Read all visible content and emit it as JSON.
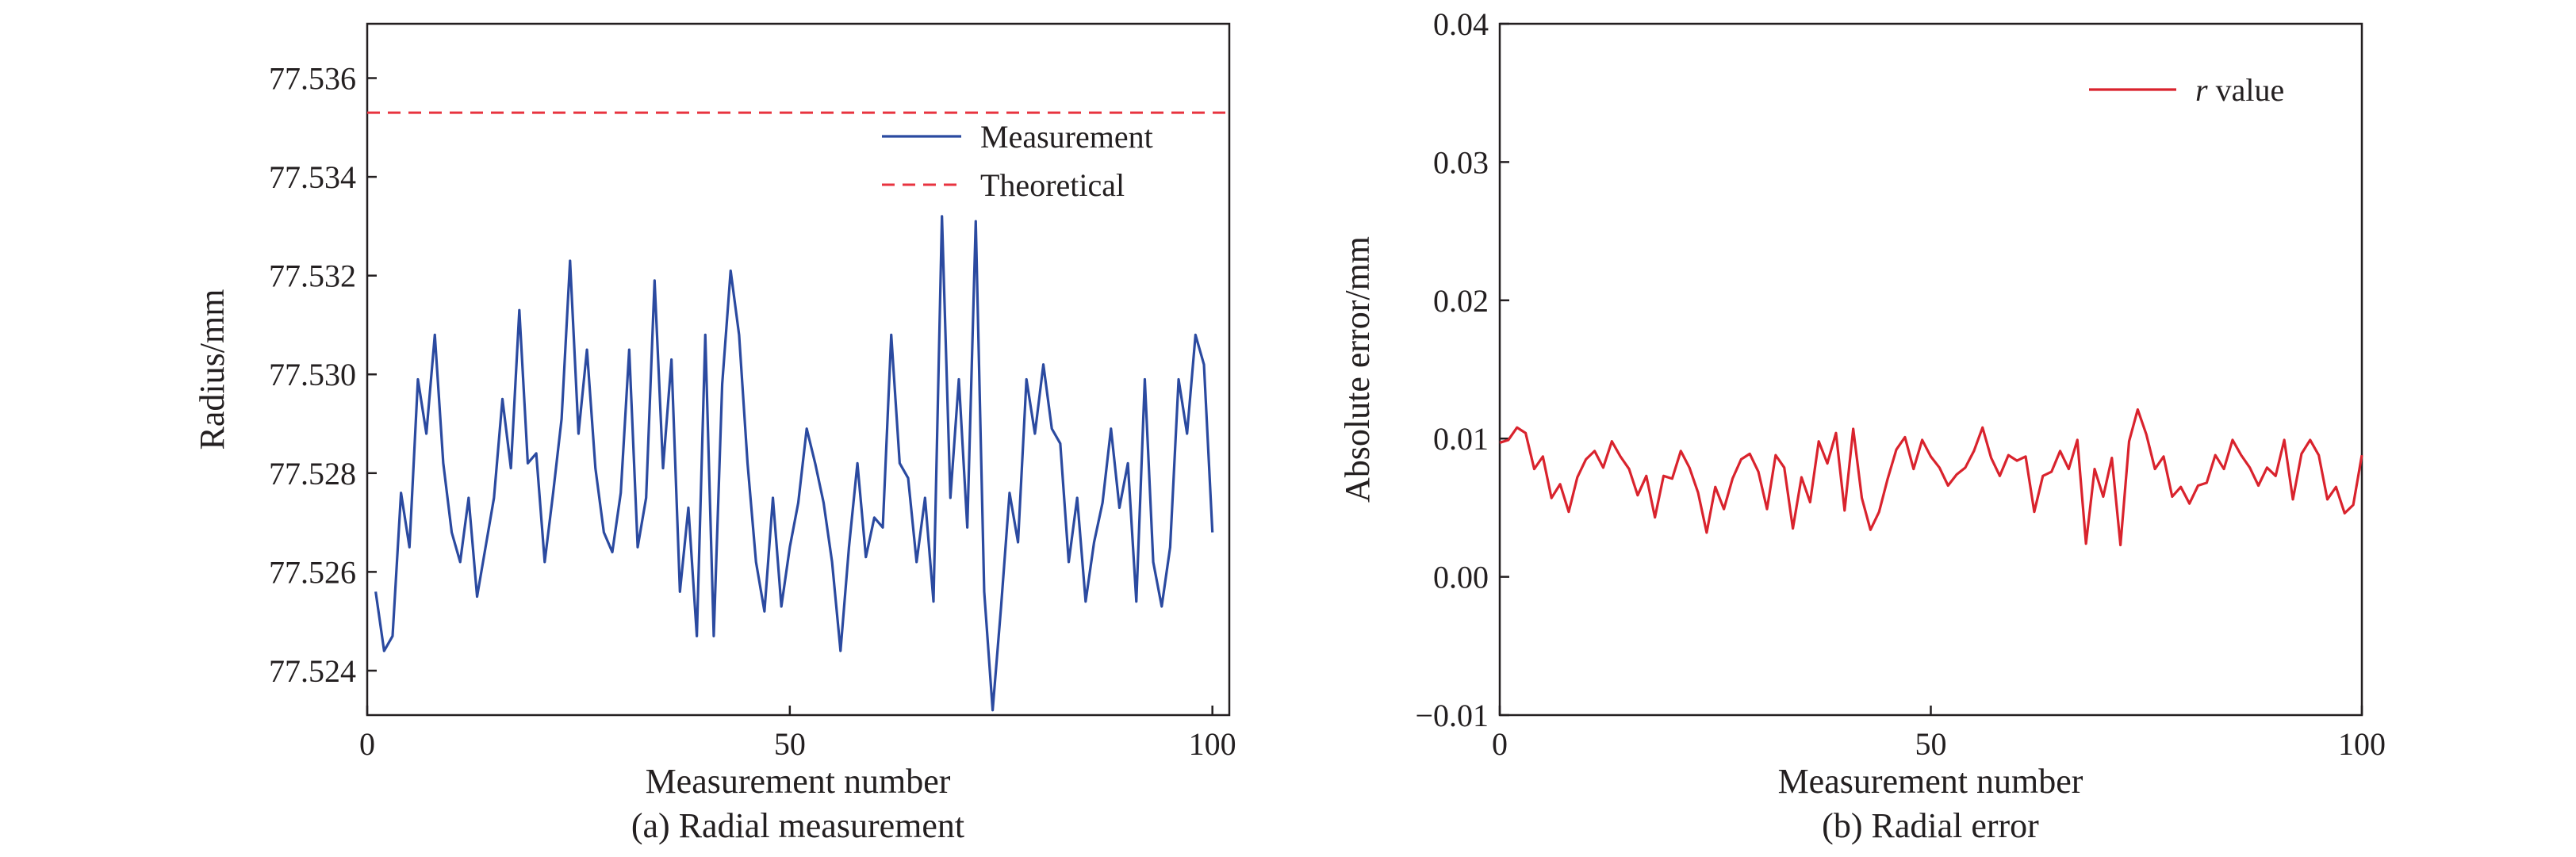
{
  "colors": {
    "measurement": "#2b4aa0",
    "theoretical": "#e8333f",
    "error": "#d9232d",
    "axis": "#231f20"
  },
  "chart_data": [
    {
      "type": "line",
      "caption": "(a) Radial measurement",
      "xlabel": "Measurement number",
      "ylabel": "Radius/mm",
      "xlim": [
        0,
        102
      ],
      "ylim": [
        77.5231,
        77.5371
      ],
      "xticks": [
        0,
        50,
        100
      ],
      "xtick_labels": [
        "0",
        "50",
        "100"
      ],
      "yticks": [
        77.524,
        77.526,
        77.528,
        77.53,
        77.532,
        77.534,
        77.536
      ],
      "ytick_labels": [
        "77.524",
        "77.526",
        "77.528",
        "77.530",
        "77.532",
        "77.534",
        "77.536"
      ],
      "legend_position": "top-right",
      "grid": false,
      "series": [
        {
          "name": "Measurement",
          "style": "solid",
          "x": [
            1,
            2,
            3,
            4,
            5,
            6,
            7,
            8,
            9,
            10,
            11,
            12,
            13,
            14,
            15,
            16,
            17,
            18,
            19,
            20,
            21,
            22,
            23,
            24,
            25,
            26,
            27,
            28,
            29,
            30,
            31,
            32,
            33,
            34,
            35,
            36,
            37,
            38,
            39,
            40,
            41,
            42,
            43,
            44,
            45,
            46,
            47,
            48,
            49,
            50,
            51,
            52,
            53,
            54,
            55,
            56,
            57,
            58,
            59,
            60,
            61,
            62,
            63,
            64,
            65,
            66,
            67,
            68,
            69,
            70,
            71,
            72,
            73,
            74,
            75,
            76,
            77,
            78,
            79,
            80,
            81,
            82,
            83,
            84,
            85,
            86,
            87,
            88,
            89,
            90,
            91,
            92,
            93,
            94,
            95,
            96,
            97,
            98,
            99,
            100
          ],
          "values": [
            77.5256,
            77.5244,
            77.5247,
            77.5276,
            77.5265,
            77.5299,
            77.5288,
            77.5308,
            77.5282,
            77.5268,
            77.5262,
            77.5275,
            77.5255,
            77.5265,
            77.5275,
            77.5295,
            77.5281,
            77.5313,
            77.5282,
            77.5284,
            77.5262,
            77.5276,
            77.5291,
            77.5323,
            77.5288,
            77.5305,
            77.5281,
            77.5268,
            77.5264,
            77.5276,
            77.5305,
            77.5265,
            77.5275,
            77.5319,
            77.5281,
            77.5303,
            77.5256,
            77.5273,
            77.5247,
            77.5308,
            77.5247,
            77.5298,
            77.5321,
            77.5308,
            77.5282,
            77.5262,
            77.5252,
            77.5275,
            77.5253,
            77.5265,
            77.5274,
            77.5289,
            77.5282,
            77.5274,
            77.5262,
            77.5244,
            77.5265,
            77.5282,
            77.5263,
            77.5271,
            77.5269,
            77.5308,
            77.5282,
            77.5279,
            77.5262,
            77.5275,
            77.5254,
            77.5332,
            77.5275,
            77.5299,
            77.5269,
            77.5331,
            77.5256,
            77.5232,
            77.5253,
            77.5276,
            77.5266,
            77.5299,
            77.5288,
            77.5302,
            77.5289,
            77.5286,
            77.5262,
            77.5275,
            77.5254,
            77.5266,
            77.5274,
            77.5289,
            77.5273,
            77.5282,
            77.5254,
            77.5299,
            77.5262,
            77.5253,
            77.5265,
            77.5299,
            77.5288,
            77.5308,
            77.5302,
            77.5268
          ]
        },
        {
          "name": "Theoretical",
          "style": "dashed",
          "x": [
            0,
            102
          ],
          "values": [
            77.5353,
            77.5353
          ]
        }
      ]
    },
    {
      "type": "line",
      "caption": "(b) Radial error",
      "xlabel": "Measurement number",
      "ylabel": "Absolute error/mm",
      "xlim": [
        0,
        100
      ],
      "ylim": [
        -0.01,
        0.04
      ],
      "xticks": [
        0,
        50,
        100
      ],
      "xtick_labels": [
        "0",
        "50",
        "100"
      ],
      "yticks": [
        -0.01,
        0,
        0.01,
        0.02,
        0.03,
        0.04
      ],
      "ytick_labels": [
        "−0.01",
        "0.00",
        "0.01",
        "0.02",
        "0.03",
        "0.04"
      ],
      "legend_position": "top-right",
      "grid": false,
      "series": [
        {
          "name_italic": "r",
          "name_rest": " value",
          "style": "solid",
          "x": [
            0,
            1,
            2,
            3,
            4,
            5,
            6,
            7,
            8,
            9,
            10,
            11,
            12,
            13,
            14,
            15,
            16,
            17,
            18,
            19,
            20,
            21,
            22,
            23,
            24,
            25,
            26,
            27,
            28,
            29,
            30,
            31,
            32,
            33,
            34,
            35,
            36,
            37,
            38,
            39,
            40,
            41,
            42,
            43,
            44,
            45,
            46,
            47,
            48,
            49,
            50,
            51,
            52,
            53,
            54,
            55,
            56,
            57,
            58,
            59,
            60,
            61,
            62,
            63,
            64,
            65,
            66,
            67,
            68,
            69,
            70,
            71,
            72,
            73,
            74,
            75,
            76,
            77,
            78,
            79,
            80,
            81,
            82,
            83,
            84,
            85,
            86,
            87,
            88,
            89,
            90,
            91,
            92,
            93,
            94,
            95,
            96,
            97,
            98,
            99,
            100
          ],
          "values": [
            0.0097,
            0.0099,
            0.0108,
            0.0104,
            0.0078,
            0.0087,
            0.0057,
            0.0067,
            0.0047,
            0.0072,
            0.0085,
            0.0091,
            0.0079,
            0.0098,
            0.0087,
            0.0078,
            0.0059,
            0.0073,
            0.0043,
            0.0073,
            0.0071,
            0.0091,
            0.0079,
            0.0061,
            0.0032,
            0.0065,
            0.0049,
            0.0071,
            0.0085,
            0.0089,
            0.0076,
            0.0049,
            0.0088,
            0.0079,
            0.0035,
            0.0072,
            0.0054,
            0.0098,
            0.0082,
            0.0104,
            0.0048,
            0.0107,
            0.0057,
            0.0034,
            0.0047,
            0.0071,
            0.0092,
            0.0101,
            0.0078,
            0.0099,
            0.0087,
            0.0079,
            0.0066,
            0.0074,
            0.0079,
            0.0091,
            0.0108,
            0.0086,
            0.0073,
            0.0088,
            0.0084,
            0.0087,
            0.0047,
            0.0073,
            0.0076,
            0.0091,
            0.0078,
            0.0099,
            0.0024,
            0.0078,
            0.0058,
            0.0086,
            0.0023,
            0.0098,
            0.0121,
            0.0103,
            0.0078,
            0.0087,
            0.0058,
            0.0065,
            0.0053,
            0.0066,
            0.0068,
            0.0088,
            0.0078,
            0.0099,
            0.0088,
            0.0079,
            0.0066,
            0.0079,
            0.0073,
            0.0099,
            0.0056,
            0.0089,
            0.0099,
            0.0088,
            0.0056,
            0.0065,
            0.0046,
            0.0052,
            0.0088
          ]
        }
      ]
    }
  ]
}
